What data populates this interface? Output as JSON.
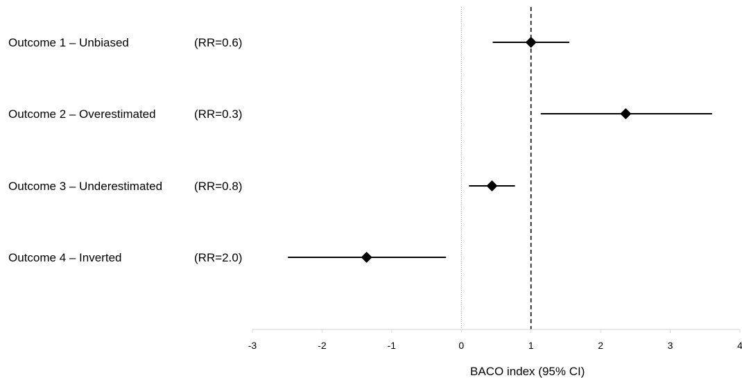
{
  "chart_data": {
    "type": "forest",
    "xlabel": "BACO index (95% CI)",
    "xlim": [
      -3,
      4
    ],
    "xticks": [
      -3,
      -2,
      -1,
      0,
      1,
      2,
      3,
      4
    ],
    "reference_lines": [
      {
        "x": 0,
        "style": "dotted"
      },
      {
        "x": 1,
        "style": "dashed"
      }
    ],
    "rows": [
      {
        "label": "Outcome 1 – Unbiased",
        "rr": "(RR=0.6)",
        "estimate": 1.0,
        "ci_low": 0.45,
        "ci_high": 1.55
      },
      {
        "label": "Outcome 2 – Overestimated",
        "rr": "(RR=0.3)",
        "estimate": 2.36,
        "ci_low": 1.14,
        "ci_high": 3.6
      },
      {
        "label": "Outcome 3 – Underestimated",
        "rr": "(RR=0.8)",
        "estimate": 0.44,
        "ci_low": 0.11,
        "ci_high": 0.77
      },
      {
        "label": "Outcome 4 – Inverted",
        "rr": "(RR=2.0)",
        "estimate": -1.36,
        "ci_low": -2.49,
        "ci_high": -0.22
      }
    ]
  }
}
